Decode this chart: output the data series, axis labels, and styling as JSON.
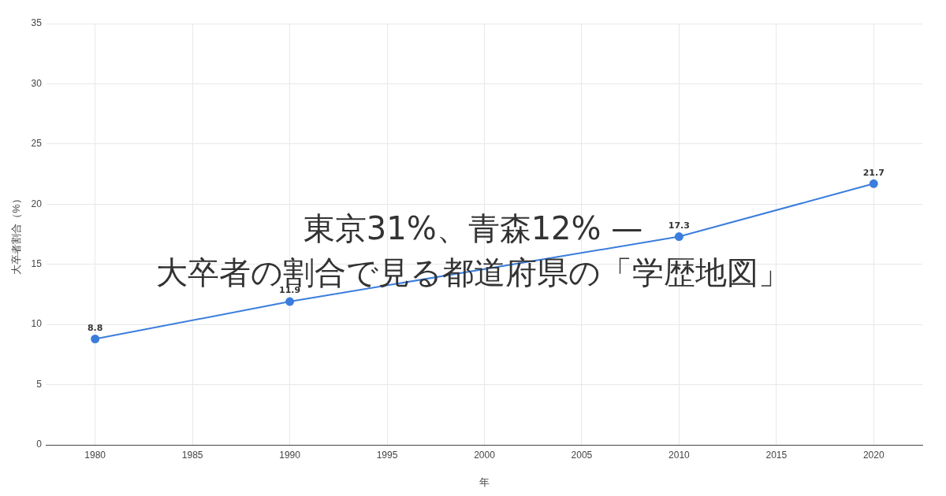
{
  "chart_data": {
    "type": "line",
    "title": "東京31%、青森12% —\n大卒者の割合で見る都道府県の「学歴地図」",
    "xlabel": "年",
    "ylabel": "大卒者割合（%）",
    "x": [
      1980,
      1990,
      2010,
      2020
    ],
    "series": [
      {
        "color": "#3b7ddd",
        "values": [
          8.8,
          11.9,
          17.3,
          21.7
        ]
      }
    ],
    "xlim": [
      1977.5,
      2022.5
    ],
    "xticks": [
      1980,
      1985,
      1990,
      1995,
      2000,
      2005,
      2010,
      2015,
      2020
    ],
    "ylim": [
      0,
      35
    ],
    "yticks": [
      0,
      5,
      10,
      15,
      20,
      25,
      30,
      35
    ],
    "grid": true,
    "legend": false,
    "marker": "circle",
    "line_style": "solid",
    "data_labels": true
  }
}
